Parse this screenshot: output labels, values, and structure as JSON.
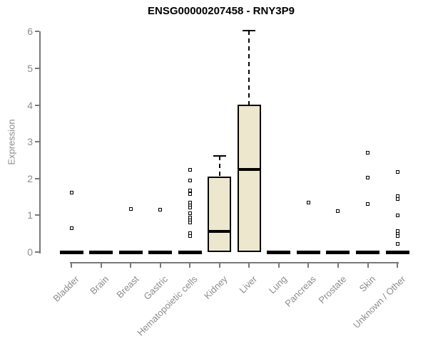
{
  "chart_data": {
    "type": "boxplot",
    "title": "ENSG00000207458 - RNY3P9",
    "ylabel": "Expression",
    "xlabel": "",
    "ylim": [
      0,
      6
    ],
    "yticks": [
      0,
      1,
      2,
      3,
      4,
      5,
      6
    ],
    "grid": false,
    "legend": "none",
    "categories": [
      "Bladder",
      "Brain",
      "Breast",
      "Gastric",
      "Hematopoietic cells",
      "Kidney",
      "Liver",
      "Lung",
      "Pancreas",
      "Prostate",
      "Skin",
      "Unknown / Other"
    ],
    "boxes": [
      {
        "category": "Bladder",
        "q1": 0,
        "median": 0,
        "q3": 0,
        "whisker_low": 0,
        "whisker_high": 0,
        "outliers": [
          1.62,
          0.65
        ]
      },
      {
        "category": "Brain",
        "q1": 0,
        "median": 0,
        "q3": 0,
        "whisker_low": 0,
        "whisker_high": 0,
        "outliers": []
      },
      {
        "category": "Breast",
        "q1": 0,
        "median": 0,
        "q3": 0,
        "whisker_low": 0,
        "whisker_high": 0,
        "outliers": [
          1.17
        ]
      },
      {
        "category": "Gastric",
        "q1": 0,
        "median": 0,
        "q3": 0,
        "whisker_low": 0,
        "whisker_high": 0,
        "outliers": [
          1.15
        ]
      },
      {
        "category": "Hematopoietic cells",
        "q1": 0,
        "median": 0,
        "q3": 0,
        "whisker_low": 0,
        "whisker_high": 0,
        "outliers": [
          2.23,
          1.94,
          1.67,
          1.59,
          1.35,
          1.28,
          1.21,
          1.05,
          0.94,
          0.87,
          0.81,
          0.51,
          0.43
        ]
      },
      {
        "category": "Kidney",
        "q1": 0,
        "median": 0.56,
        "q3": 2.05,
        "whisker_low": 0,
        "whisker_high": 2.62,
        "outliers": []
      },
      {
        "category": "Liver",
        "q1": 0,
        "median": 2.25,
        "q3": 4.01,
        "whisker_low": 0,
        "whisker_high": 6.03,
        "outliers": []
      },
      {
        "category": "Lung",
        "q1": 0,
        "median": 0,
        "q3": 0,
        "whisker_low": 0,
        "whisker_high": 0,
        "outliers": []
      },
      {
        "category": "Pancreas",
        "q1": 0,
        "median": 0,
        "q3": 0,
        "whisker_low": 0,
        "whisker_high": 0,
        "outliers": [
          1.34
        ]
      },
      {
        "category": "Prostate",
        "q1": 0,
        "median": 0,
        "q3": 0,
        "whisker_low": 0,
        "whisker_high": 0,
        "outliers": [
          1.11
        ]
      },
      {
        "category": "Skin",
        "q1": 0,
        "median": 0,
        "q3": 0,
        "whisker_low": 0,
        "whisker_high": 0,
        "outliers": [
          2.7,
          2.02,
          1.31
        ]
      },
      {
        "category": "Unknown / Other",
        "q1": 0,
        "median": 0,
        "q3": 0,
        "whisker_low": 0,
        "whisker_high": 0,
        "outliers": [
          2.18,
          1.52,
          1.44,
          0.99,
          0.58,
          0.5,
          0.43,
          0.22
        ]
      }
    ],
    "colors": {
      "box_fill": "#ece7cd",
      "box_border": "#000000",
      "axis": "#787878",
      "label_text": "#8c8c8c",
      "title_text": "#000000"
    }
  }
}
